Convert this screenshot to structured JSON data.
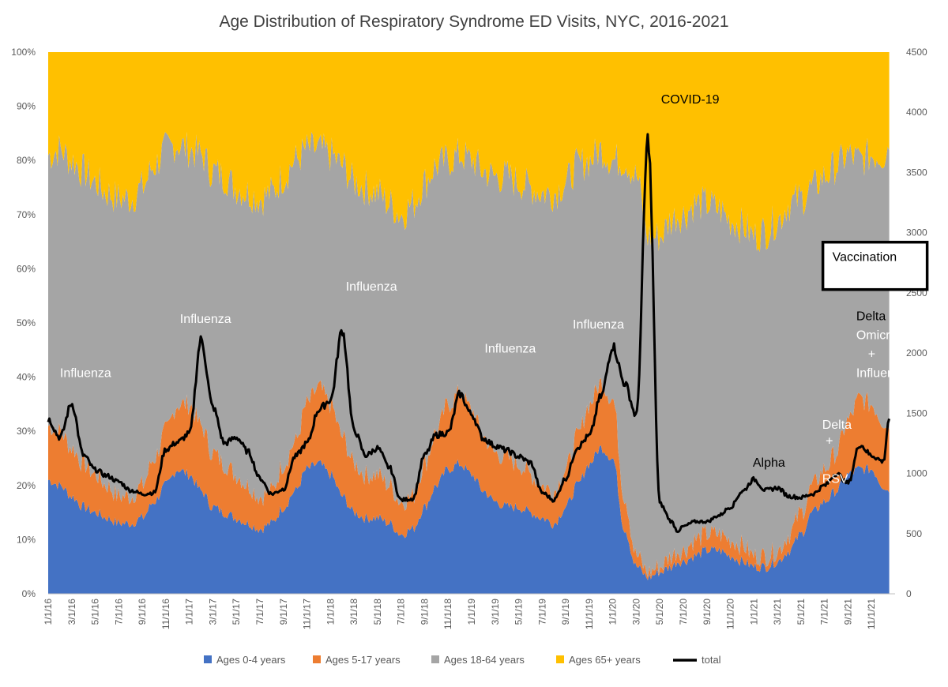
{
  "chart_data": {
    "type": "area",
    "stacked": true,
    "normalized": true,
    "title": "Age Distribution of Respiratory Syndrome ED Visits, NYC, 2016-2021",
    "left_axis": {
      "min": 0,
      "max": 1,
      "ticks": [
        {
          "value": 0,
          "label": "0%"
        },
        {
          "value": 0.1,
          "label": "10%"
        },
        {
          "value": 0.2,
          "label": "20%"
        },
        {
          "value": 0.3,
          "label": "30%"
        },
        {
          "value": 0.4,
          "label": "40%"
        },
        {
          "value": 0.5,
          "label": "50%"
        },
        {
          "value": 0.6,
          "label": "60%"
        },
        {
          "value": 0.7,
          "label": "70%"
        },
        {
          "value": 0.8,
          "label": "80%"
        },
        {
          "value": 0.9,
          "label": "90%"
        },
        {
          "value": 1,
          "label": "100%"
        }
      ]
    },
    "right_axis": {
      "min": 0,
      "max": 4500,
      "ticks": [
        {
          "value": 0,
          "label": "0"
        },
        {
          "value": 500,
          "label": "500"
        },
        {
          "value": 1000,
          "label": "1000"
        },
        {
          "value": 1500,
          "label": "1500"
        },
        {
          "value": 2000,
          "label": "2000"
        },
        {
          "value": 2500,
          "label": "2500"
        },
        {
          "value": 3000,
          "label": "3000"
        },
        {
          "value": 3500,
          "label": "3500"
        },
        {
          "value": 4000,
          "label": "4000"
        },
        {
          "value": 4500,
          "label": "4500"
        }
      ]
    },
    "x_range": [
      0,
      72
    ],
    "x_ticks": [
      {
        "value": 0,
        "label": "1/1/16"
      },
      {
        "value": 2,
        "label": "3/1/16"
      },
      {
        "value": 4,
        "label": "5/1/16"
      },
      {
        "value": 6,
        "label": "7/1/16"
      },
      {
        "value": 8,
        "label": "9/1/16"
      },
      {
        "value": 10,
        "label": "11/1/16"
      },
      {
        "value": 12,
        "label": "1/1/17"
      },
      {
        "value": 14,
        "label": "3/1/17"
      },
      {
        "value": 16,
        "label": "5/1/17"
      },
      {
        "value": 18,
        "label": "7/1/17"
      },
      {
        "value": 20,
        "label": "9/1/17"
      },
      {
        "value": 22,
        "label": "11/1/17"
      },
      {
        "value": 24,
        "label": "1/1/18"
      },
      {
        "value": 26,
        "label": "3/1/18"
      },
      {
        "value": 28,
        "label": "5/1/18"
      },
      {
        "value": 30,
        "label": "7/1/18"
      },
      {
        "value": 32,
        "label": "9/1/18"
      },
      {
        "value": 34,
        "label": "11/1/18"
      },
      {
        "value": 36,
        "label": "1/1/19"
      },
      {
        "value": 38,
        "label": "3/1/19"
      },
      {
        "value": 40,
        "label": "5/1/19"
      },
      {
        "value": 42,
        "label": "7/1/19"
      },
      {
        "value": 44,
        "label": "9/1/19"
      },
      {
        "value": 46,
        "label": "11/1/19"
      },
      {
        "value": 48,
        "label": "1/1/20"
      },
      {
        "value": 50,
        "label": "3/1/20"
      },
      {
        "value": 52,
        "label": "5/1/20"
      },
      {
        "value": 54,
        "label": "7/1/20"
      },
      {
        "value": 56,
        "label": "9/1/20"
      },
      {
        "value": 58,
        "label": "11/1/20"
      },
      {
        "value": 60,
        "label": "1/1/21"
      },
      {
        "value": 62,
        "label": "3/1/21"
      },
      {
        "value": 64,
        "label": "5/1/21"
      },
      {
        "value": 66,
        "label": "7/1/21"
      },
      {
        "value": 68,
        "label": "9/1/21"
      },
      {
        "value": 70,
        "label": "11/1/21"
      }
    ],
    "x_months": [
      0,
      1,
      2,
      3,
      4,
      5,
      6,
      7,
      8,
      9,
      10,
      11,
      12,
      13,
      14,
      15,
      16,
      17,
      18,
      19,
      20,
      21,
      22,
      23,
      24,
      25,
      26,
      27,
      28,
      29,
      30,
      31,
      32,
      33,
      34,
      35,
      36,
      37,
      38,
      39,
      40,
      41,
      42,
      43,
      44,
      45,
      46,
      47,
      48,
      49,
      50,
      51,
      52,
      53,
      53.5,
      54,
      55,
      56,
      57,
      58,
      59,
      60,
      61,
      62,
      63,
      64,
      65,
      66,
      67,
      68,
      69,
      70,
      71,
      71.5
    ],
    "series": [
      {
        "name": "Ages 0-4 years",
        "color": "#4472C4",
        "axis": "left",
        "values": [
          0.21,
          0.2,
          0.18,
          0.16,
          0.15,
          0.14,
          0.13,
          0.13,
          0.14,
          0.17,
          0.2,
          0.23,
          0.22,
          0.19,
          0.16,
          0.15,
          0.14,
          0.13,
          0.12,
          0.13,
          0.16,
          0.19,
          0.23,
          0.24,
          0.22,
          0.18,
          0.15,
          0.14,
          0.14,
          0.13,
          0.11,
          0.12,
          0.16,
          0.2,
          0.23,
          0.24,
          0.22,
          0.19,
          0.17,
          0.16,
          0.16,
          0.15,
          0.14,
          0.13,
          0.16,
          0.2,
          0.24,
          0.27,
          0.25,
          0.12,
          0.05,
          0.03,
          0.04,
          0.05,
          0.06,
          0.06,
          0.07,
          0.08,
          0.08,
          0.07,
          0.06,
          0.05,
          0.05,
          0.06,
          0.08,
          0.11,
          0.15,
          0.17,
          0.19,
          0.22,
          0.23,
          0.23,
          0.2,
          0.19
        ]
      },
      {
        "name": "Ages 5-17 years",
        "color": "#ED7D31",
        "axis": "left",
        "values": [
          0.1,
          0.1,
          0.09,
          0.08,
          0.07,
          0.06,
          0.05,
          0.05,
          0.06,
          0.08,
          0.1,
          0.12,
          0.13,
          0.12,
          0.1,
          0.09,
          0.08,
          0.07,
          0.06,
          0.06,
          0.08,
          0.09,
          0.12,
          0.14,
          0.13,
          0.11,
          0.09,
          0.08,
          0.08,
          0.07,
          0.06,
          0.06,
          0.08,
          0.1,
          0.12,
          0.13,
          0.12,
          0.1,
          0.09,
          0.09,
          0.08,
          0.07,
          0.06,
          0.06,
          0.07,
          0.09,
          0.11,
          0.12,
          0.11,
          0.06,
          0.02,
          0.01,
          0.01,
          0.02,
          0.02,
          0.02,
          0.03,
          0.03,
          0.03,
          0.03,
          0.03,
          0.02,
          0.02,
          0.02,
          0.03,
          0.04,
          0.05,
          0.06,
          0.07,
          0.1,
          0.13,
          0.12,
          0.12,
          0.12
        ]
      },
      {
        "name": "Ages 18-64 years",
        "color": "#A5A5A5",
        "axis": "left",
        "values": [
          0.5,
          0.52,
          0.53,
          0.54,
          0.54,
          0.54,
          0.55,
          0.55,
          0.55,
          0.54,
          0.52,
          0.48,
          0.47,
          0.5,
          0.52,
          0.53,
          0.53,
          0.54,
          0.55,
          0.55,
          0.53,
          0.52,
          0.47,
          0.44,
          0.46,
          0.5,
          0.52,
          0.53,
          0.52,
          0.52,
          0.53,
          0.54,
          0.52,
          0.49,
          0.45,
          0.44,
          0.46,
          0.49,
          0.51,
          0.52,
          0.52,
          0.53,
          0.54,
          0.55,
          0.53,
          0.5,
          0.45,
          0.43,
          0.44,
          0.62,
          0.7,
          0.62,
          0.61,
          0.62,
          0.62,
          0.62,
          0.62,
          0.61,
          0.6,
          0.59,
          0.59,
          0.59,
          0.6,
          0.61,
          0.61,
          0.58,
          0.55,
          0.54,
          0.53,
          0.49,
          0.44,
          0.46,
          0.49,
          0.52
        ]
      },
      {
        "name": "Ages 65+ years",
        "color": "#FFC000",
        "axis": "left",
        "values": [
          0.19,
          0.18,
          0.2,
          0.22,
          0.24,
          0.26,
          0.27,
          0.27,
          0.25,
          0.21,
          0.18,
          0.17,
          0.18,
          0.19,
          0.22,
          0.23,
          0.25,
          0.26,
          0.27,
          0.26,
          0.23,
          0.2,
          0.18,
          0.18,
          0.19,
          0.21,
          0.24,
          0.25,
          0.26,
          0.28,
          0.3,
          0.28,
          0.24,
          0.21,
          0.2,
          0.19,
          0.2,
          0.22,
          0.23,
          0.23,
          0.24,
          0.25,
          0.26,
          0.26,
          0.24,
          0.21,
          0.2,
          0.18,
          0.2,
          0.2,
          0.23,
          0.34,
          0.34,
          0.31,
          0.3,
          0.3,
          0.28,
          0.28,
          0.29,
          0.31,
          0.32,
          0.34,
          0.33,
          0.31,
          0.28,
          0.27,
          0.25,
          0.23,
          0.21,
          0.19,
          0.2,
          0.19,
          0.19,
          0.17
        ]
      },
      {
        "name": "total",
        "color": "#000000",
        "axis": "right",
        "type": "line",
        "values": [
          1450,
          1300,
          1580,
          1150,
          1030,
          980,
          930,
          860,
          830,
          840,
          1200,
          1260,
          1330,
          2110,
          1550,
          1250,
          1300,
          1180,
          960,
          830,
          870,
          1140,
          1250,
          1530,
          1610,
          2190,
          1360,
          1150,
          1210,
          1050,
          780,
          790,
          1150,
          1320,
          1340,
          1660,
          1490,
          1290,
          1230,
          1190,
          1140,
          1090,
          840,
          780,
          960,
          1220,
          1310,
          1640,
          2060,
          1750,
          1480,
          3780,
          750,
          600,
          520,
          560,
          600,
          600,
          650,
          720,
          850,
          950,
          860,
          880,
          810,
          800,
          830,
          900,
          1000,
          920,
          1240,
          1150,
          1100,
          1460
        ]
      }
    ],
    "legend": {
      "position": "bottom",
      "entries": [
        "Ages 0-4 years",
        "Ages 5-17 years",
        "Ages 18-64 years",
        "Ages 65+ years",
        "total"
      ]
    },
    "annotations": [
      {
        "text": "Influenza",
        "x": 1,
        "y": 0.4,
        "axis": "left",
        "color": "#ffffff"
      },
      {
        "text": "Influenza",
        "x": 11.2,
        "y": 0.5,
        "axis": "left",
        "color": "#ffffff"
      },
      {
        "text": "Influenza",
        "x": 25.3,
        "y": 0.56,
        "axis": "left",
        "color": "#ffffff"
      },
      {
        "text": "Influenza",
        "x": 37.1,
        "y": 0.445,
        "axis": "left",
        "color": "#ffffff"
      },
      {
        "text": "Influenza",
        "x": 44.6,
        "y": 0.49,
        "axis": "left",
        "color": "#ffffff"
      },
      {
        "text": "COVID-19",
        "x": 52.1,
        "y": 0.905,
        "axis": "left",
        "color": "#000000"
      },
      {
        "text": "Alpha",
        "x": 59.9,
        "y": 0.235,
        "axis": "left",
        "color": "#000000"
      },
      {
        "text": "Delta",
        "x": 65.8,
        "y": 0.305,
        "axis": "left",
        "color": "#ffffff"
      },
      {
        "text": "+",
        "x": 66.1,
        "y": 0.275,
        "axis": "left",
        "color": "#ffffff"
      },
      {
        "text": "RSV",
        "x": 65.8,
        "y": 0.205,
        "axis": "left",
        "color": "#ffffff"
      },
      {
        "text": "Delta",
        "x": 68.7,
        "y": 0.505,
        "axis": "left",
        "color": "#000000"
      },
      {
        "text": "Omicron",
        "x": 68.7,
        "y": 0.47,
        "axis": "left",
        "color": "#ffffff"
      },
      {
        "text": "+",
        "x": 69.7,
        "y": 0.435,
        "axis": "left",
        "color": "#ffffff"
      },
      {
        "text": "Influenza",
        "x": 68.7,
        "y": 0.4,
        "axis": "left",
        "color": "#ffffff"
      }
    ],
    "callout_box": {
      "text": "Vaccination",
      "x": 66.4,
      "y": 0.62
    }
  }
}
